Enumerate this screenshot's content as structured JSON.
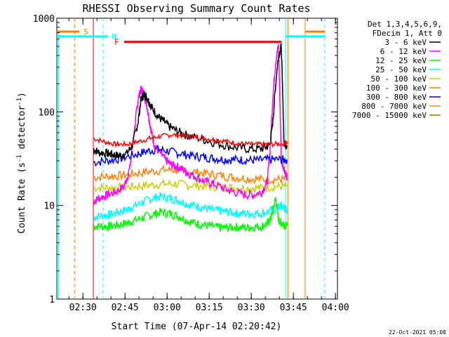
{
  "chart_data": {
    "type": "line",
    "title": "RHESSI Observing Summary Count Rates",
    "xlabel": "Start Time (07-Apr-14 02:20:42)",
    "ylabel_main": "Count Rate (s",
    "ylabel_sup1": "-1",
    "ylabel_mid": " detector",
    "ylabel_sup2": "-1",
    "ylabel_end": ")",
    "y_scale": "log",
    "ylim": [
      1,
      1000
    ],
    "xlim_minutes": [
      0,
      100
    ],
    "x_ticks": [
      {
        "minutes": 9.3,
        "label": "02:30"
      },
      {
        "minutes": 24.3,
        "label": "02:45"
      },
      {
        "minutes": 39.3,
        "label": "03:00"
      },
      {
        "minutes": 54.3,
        "label": "03:15"
      },
      {
        "minutes": 69.3,
        "label": "03:30"
      },
      {
        "minutes": 84.3,
        "label": "03:45"
      },
      {
        "minutes": 99.3,
        "label": "04:00"
      }
    ],
    "y_ticks": [
      {
        "value": 1,
        "label": "1"
      },
      {
        "value": 10,
        "label": "10"
      },
      {
        "value": 100,
        "label": "100"
      },
      {
        "value": 1000,
        "label": "1000"
      }
    ],
    "legend_header": [
      "Det 1,3,4,5,6,9,",
      "FDecim 1, Att 0"
    ],
    "series": [
      {
        "name": "3 - 6 keV",
        "color": "#000000",
        "x": [
          13,
          15,
          18,
          20,
          22,
          25,
          27,
          29,
          30,
          31,
          32,
          33,
          34,
          36,
          38,
          40,
          43,
          46,
          50,
          55,
          60,
          65,
          70,
          74,
          76,
          77,
          78,
          79,
          80,
          81,
          82
        ],
        "y": [
          40,
          37,
          36,
          35,
          34,
          36,
          45,
          80,
          135,
          155,
          145,
          125,
          110,
          90,
          80,
          70,
          62,
          57,
          53,
          48,
          44,
          41,
          40,
          41,
          45,
          80,
          200,
          400,
          500,
          45,
          44
        ]
      },
      {
        "name": "6 - 12 keV",
        "color": "#ff00ff",
        "x": [
          13,
          15,
          18,
          21,
          24,
          26,
          28,
          29,
          30,
          31,
          32,
          33,
          34,
          35,
          37,
          39,
          41,
          43,
          45,
          47,
          50,
          53,
          56,
          60,
          63,
          67,
          70,
          73,
          75,
          76,
          77,
          78,
          79,
          80,
          81,
          82
        ],
        "y": [
          11,
          12,
          13,
          14,
          16,
          25,
          80,
          140,
          175,
          160,
          120,
          80,
          55,
          42,
          36,
          30,
          27,
          26,
          24,
          22,
          20,
          18,
          17,
          15,
          14,
          13,
          13,
          14,
          18,
          40,
          150,
          350,
          520,
          30,
          25,
          20
        ]
      },
      {
        "name": "12 - 25 keV",
        "color": "#00ff00",
        "x": [
          13,
          16,
          19,
          22,
          25,
          28,
          31,
          34,
          37,
          40,
          43,
          46,
          49,
          52,
          55,
          58,
          61,
          64,
          67,
          70,
          73,
          75,
          76,
          77,
          78,
          79,
          80,
          81,
          82
        ],
        "y": [
          6,
          6,
          6,
          6.2,
          6.5,
          7,
          7.5,
          8,
          8.5,
          8.2,
          7.8,
          7,
          6.5,
          6.2,
          6,
          5.8,
          5.8,
          5.9,
          5.8,
          5.9,
          6,
          6.5,
          7,
          9,
          12,
          7,
          6.5,
          6.3,
          6
        ]
      },
      {
        "name": "25 - 50 keV",
        "color": "#00ffff",
        "x": [
          13,
          16,
          19,
          22,
          25,
          28,
          31,
          34,
          37,
          40,
          43,
          46,
          49,
          52,
          55,
          58,
          61,
          64,
          67,
          70,
          73,
          76,
          79,
          80,
          81,
          82
        ],
        "y": [
          7.5,
          7.8,
          8,
          8.5,
          9,
          10,
          11,
          12,
          12.5,
          12,
          11.5,
          10.5,
          10,
          9.5,
          9,
          8.8,
          8.5,
          8.3,
          8.2,
          8.2,
          8.3,
          8.8,
          9.5,
          10,
          9.5,
          9
        ]
      },
      {
        "name": "50 - 100 keV",
        "color": "#cccc00",
        "x": [
          13,
          18,
          23,
          28,
          33,
          38,
          43,
          48,
          53,
          58,
          63,
          68,
          73,
          78,
          82
        ],
        "y": [
          15.5,
          15.5,
          15.6,
          16,
          16.5,
          17,
          17,
          16.5,
          16,
          15.8,
          15.5,
          15.4,
          15.5,
          16,
          16
        ]
      },
      {
        "name": "100 - 300 keV",
        "color": "#ff8000",
        "x": [
          13,
          18,
          23,
          28,
          33,
          38,
          43,
          48,
          53,
          58,
          63,
          68,
          73,
          78,
          82
        ],
        "y": [
          20,
          20.5,
          21,
          22,
          23,
          24,
          24,
          23,
          22,
          21,
          20,
          19.5,
          19,
          19,
          19
        ]
      },
      {
        "name": "300 - 800 keV",
        "color": "#0000ff",
        "x": [
          13,
          18,
          23,
          28,
          32,
          36,
          40,
          44,
          48,
          52,
          56,
          60,
          64,
          68,
          72,
          76,
          80,
          82
        ],
        "y": [
          29,
          30,
          32,
          35,
          38,
          40,
          38,
          36,
          34,
          33,
          32,
          31,
          31,
          30.5,
          30.5,
          31,
          31,
          31
        ]
      },
      {
        "name": "800 - 7000 keV",
        "color": "#ff8c00",
        "x": [],
        "y": []
      },
      {
        "name": "7000 - 15000 keV",
        "color": "#808000",
        "x": [],
        "y": []
      }
    ],
    "red_series": {
      "color": "#ff0000",
      "x": [
        13,
        17,
        21,
        25,
        29,
        33,
        37,
        41,
        45,
        49,
        53,
        57,
        61,
        65,
        69,
        73,
        77,
        81,
        82
      ],
      "y": [
        52,
        48,
        45,
        45,
        48,
        52,
        55,
        57,
        56,
        54,
        52,
        50,
        48,
        46,
        45,
        45,
        45,
        46,
        47
      ]
    },
    "markers": [
      {
        "label": "S",
        "color": "#ff8000",
        "x_start": 0,
        "x_end": 8,
        "y": 720
      },
      {
        "label": "N",
        "color": "#00ffff",
        "x_start": 0,
        "x_end": 18,
        "y": 640
      },
      {
        "label": "F",
        "color": "#ff0000",
        "x_start": 24,
        "x_end": 80,
        "y": 560
      }
    ],
    "footer": "22-Oct-2021 05:08"
  }
}
